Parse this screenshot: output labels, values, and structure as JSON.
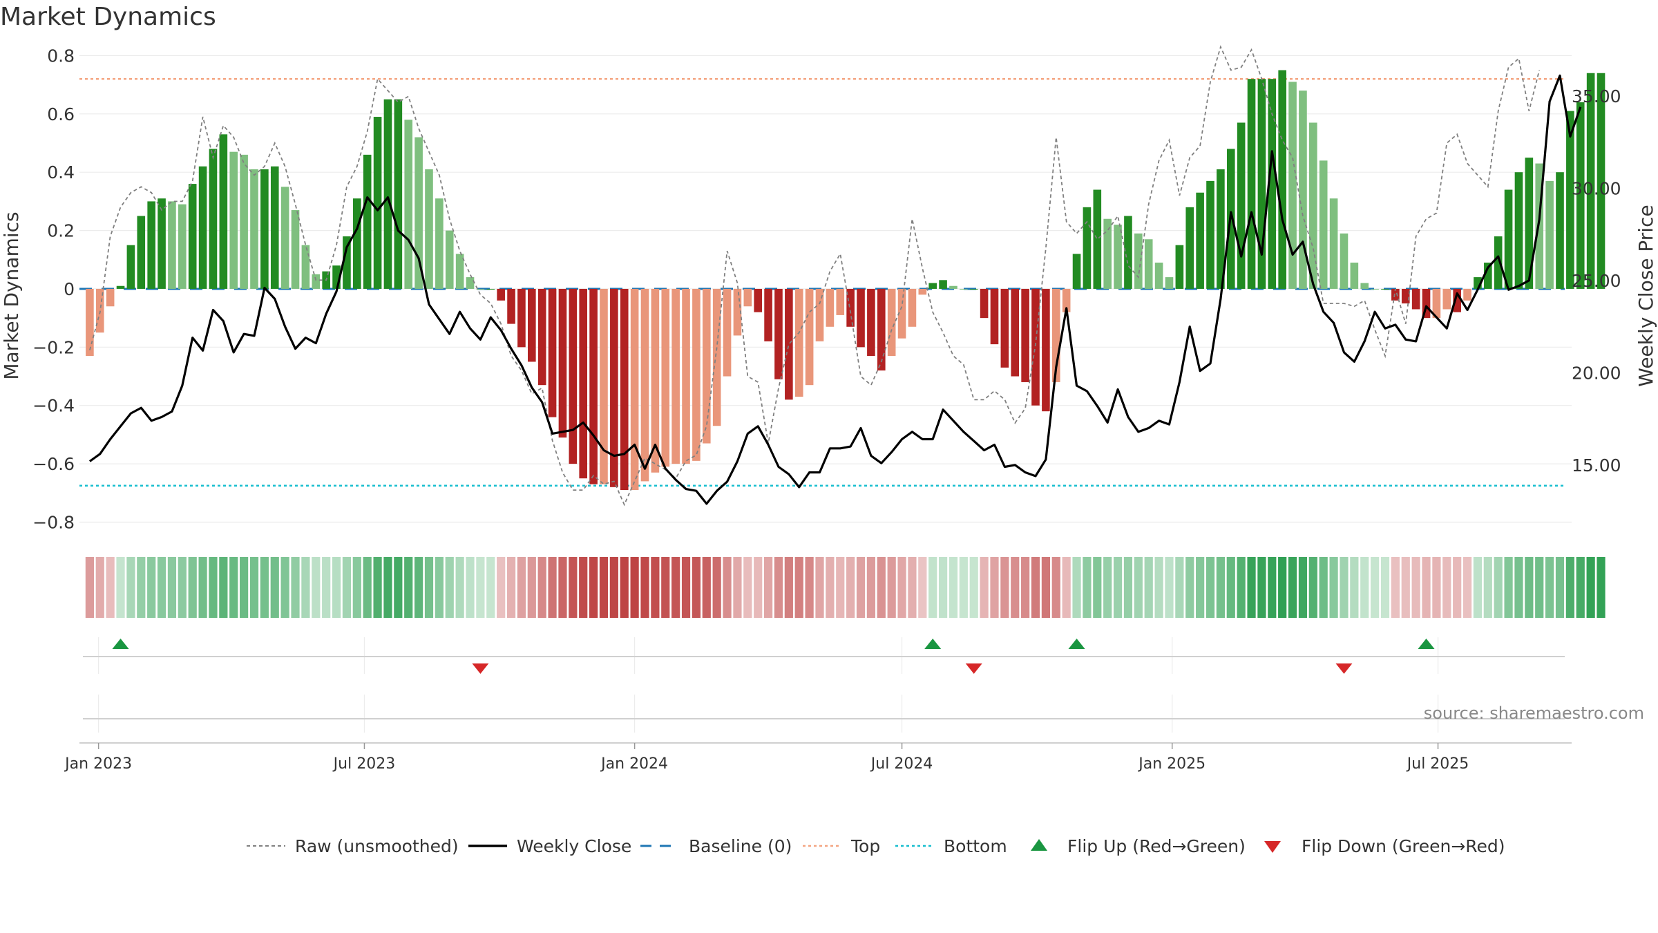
{
  "title": "Market Dynamics",
  "source": "source: sharemaestro.com",
  "left_axis_label": "Market Dynamics",
  "right_axis_label": "Weekly Close Price",
  "left_ticks": [
    "0.8",
    "0.6",
    "0.4",
    "0.2",
    "0",
    "−0.2",
    "−0.4",
    "−0.6",
    "−0.8"
  ],
  "right_ticks": [
    "35.00",
    "30.00",
    "25.00",
    "20.00",
    "15.00"
  ],
  "x_ticks": [
    "Jan 2023",
    "Jul 2023",
    "Jan 2024",
    "Jul 2024",
    "Jan 2025",
    "Jul 2025"
  ],
  "legend": {
    "raw": "Raw (unsmoothed)",
    "close": "Weekly Close",
    "baseline": "Baseline (0)",
    "top": "Top",
    "bottom": "Bottom",
    "flip_up": "Flip Up (Red→Green)",
    "flip_down": "Flip Down (Green→Red)"
  },
  "colors": {
    "strong_green": "#228b22",
    "light_green": "#7fbf7f",
    "strong_red": "#b22222",
    "light_red": "#e9967a",
    "close_line": "#000000",
    "raw_line": "#808080",
    "baseline": "#1f77b4",
    "top": "#f4a582",
    "bottom": "#17becf",
    "flip_up": "#1a9641",
    "flip_down": "#d62728"
  },
  "chart_data": {
    "type": "bar",
    "x_range": [
      "2022-12-19",
      "2025-09-30"
    ],
    "y_left_lim": [
      -0.87,
      0.82
    ],
    "y_right_lim": [
      10.8,
      37.5
    ],
    "top_level": 0.72,
    "bottom_level": -0.675,
    "baseline": 0,
    "dynamics": [
      -0.23,
      -0.15,
      -0.06,
      0.01,
      0.15,
      0.25,
      0.3,
      0.31,
      0.3,
      0.29,
      0.36,
      0.42,
      0.48,
      0.53,
      0.47,
      0.46,
      0.41,
      0.41,
      0.42,
      0.35,
      0.27,
      0.15,
      0.05,
      0.06,
      0.08,
      0.18,
      0.31,
      0.46,
      0.59,
      0.65,
      0.65,
      0.58,
      0.52,
      0.41,
      0.31,
      0.2,
      0.12,
      0.04,
      0,
      0,
      -0.04,
      -0.12,
      -0.2,
      -0.25,
      -0.33,
      -0.44,
      -0.51,
      -0.6,
      -0.65,
      -0.67,
      -0.67,
      -0.68,
      -0.69,
      -0.69,
      -0.66,
      -0.63,
      -0.61,
      -0.6,
      -0.6,
      -0.59,
      -0.53,
      -0.47,
      -0.3,
      -0.16,
      -0.06,
      -0.08,
      -0.18,
      -0.31,
      -0.38,
      -0.37,
      -0.33,
      -0.18,
      -0.13,
      -0.09,
      -0.13,
      -0.2,
      -0.23,
      -0.28,
      -0.23,
      -0.17,
      -0.13,
      -0.02,
      0.02,
      0.03,
      0.01,
      0,
      0,
      -0.1,
      -0.19,
      -0.27,
      -0.3,
      -0.32,
      -0.4,
      -0.42,
      -0.32,
      -0.08,
      0.12,
      0.28,
      0.34,
      0.24,
      0.22,
      0.25,
      0.19,
      0.17,
      0.09,
      0.04,
      0.15,
      0.28,
      0.33,
      0.37,
      0.41,
      0.48,
      0.57,
      0.72,
      0.72,
      0.72,
      0.75,
      0.71,
      0.68,
      0.57,
      0.44,
      0.31,
      0.19,
      0.09,
      0.02,
      0,
      0,
      -0.04,
      -0.05,
      -0.07,
      -0.1,
      -0.1,
      -0.07,
      -0.08,
      -0.04,
      0.04,
      0.09,
      0.18,
      0.34,
      0.4,
      0.45,
      0.43,
      0.37,
      0.4,
      0.61,
      0.64,
      0.74,
      0.74
    ],
    "raw": [
      -0.21,
      -0.08,
      0.18,
      0.28,
      0.33,
      0.35,
      0.33,
      0.27,
      0.3,
      0.3,
      0.37,
      0.59,
      0.45,
      0.56,
      0.52,
      0.43,
      0.39,
      0.42,
      0.5,
      0.42,
      0.29,
      0.15,
      0.03,
      0.03,
      0.15,
      0.35,
      0.42,
      0.54,
      0.72,
      0.68,
      0.64,
      0.66,
      0.55,
      0.47,
      0.39,
      0.24,
      0.13,
      0.05,
      -0.02,
      -0.05,
      -0.12,
      -0.23,
      -0.28,
      -0.36,
      -0.34,
      -0.52,
      -0.63,
      -0.69,
      -0.69,
      -0.64,
      -0.67,
      -0.66,
      -0.74,
      -0.66,
      -0.58,
      -0.6,
      -0.62,
      -0.65,
      -0.59,
      -0.57,
      -0.47,
      -0.2,
      0.13,
      0.02,
      -0.3,
      -0.32,
      -0.53,
      -0.34,
      -0.19,
      -0.15,
      -0.08,
      -0.05,
      0.06,
      0.12,
      -0.08,
      -0.3,
      -0.33,
      -0.25,
      -0.14,
      -0.06,
      0.24,
      0.07,
      -0.08,
      -0.15,
      -0.23,
      -0.26,
      -0.38,
      -0.38,
      -0.35,
      -0.38,
      -0.46,
      -0.41,
      -0.19,
      0.14,
      0.52,
      0.23,
      0.19,
      0.23,
      0.17,
      0.2,
      0.25,
      0.08,
      0.04,
      0.29,
      0.44,
      0.51,
      0.32,
      0.45,
      0.49,
      0.71,
      0.83,
      0.75,
      0.76,
      0.82,
      0.72,
      0.6,
      0.51,
      0.45,
      0.25,
      0.14,
      -0.05,
      -0.05,
      -0.05,
      -0.06,
      -0.04,
      -0.14,
      -0.23,
      0.0,
      -0.12,
      0.18,
      0.24,
      0.26,
      0.5,
      0.53,
      0.43,
      0.39,
      0.35,
      0.61,
      0.76,
      0.79,
      0.61,
      0.75
    ],
    "close": [
      15.2,
      15.6,
      16.4,
      17.1,
      17.8,
      18.1,
      17.4,
      17.6,
      17.9,
      19.3,
      21.9,
      21.2,
      23.4,
      22.8,
      21.1,
      22.1,
      22.0,
      24.6,
      24.0,
      22.5,
      21.3,
      21.9,
      21.6,
      23.2,
      24.4,
      26.8,
      27.8,
      29.5,
      28.8,
      29.5,
      27.7,
      27.2,
      26.2,
      23.7,
      22.9,
      22.1,
      23.3,
      22.4,
      21.8,
      23.0,
      22.3,
      21.3,
      20.4,
      19.2,
      18.4,
      16.7,
      16.8,
      16.9,
      17.3,
      16.6,
      15.8,
      15.5,
      15.6,
      16.1,
      14.8,
      16.1,
      14.8,
      14.2,
      13.7,
      13.6,
      12.9,
      13.6,
      14.1,
      15.2,
      16.7,
      17.1,
      16.1,
      14.9,
      14.5,
      13.8,
      14.6,
      14.6,
      15.9,
      15.9,
      16.0,
      17.0,
      15.5,
      15.1,
      15.7,
      16.4,
      16.8,
      16.4,
      16.4,
      18.0,
      17.4,
      16.8,
      16.3,
      15.8,
      16.1,
      14.9,
      15.0,
      14.6,
      14.4,
      15.3,
      20.3,
      23.5,
      19.3,
      19.0,
      18.2,
      17.3,
      19.1,
      17.6,
      16.8,
      17.0,
      17.4,
      17.2,
      19.5,
      22.5,
      20.1,
      20.5,
      24.0,
      28.7,
      26.3,
      28.7,
      26.4,
      32.0,
      28.3,
      26.4,
      27.1,
      24.8,
      23.3,
      22.7,
      21.1,
      20.6,
      21.7,
      23.3,
      22.4,
      22.6,
      21.8,
      21.7,
      23.6,
      23.0,
      22.4,
      24.3,
      23.4,
      24.5,
      25.7,
      26.3,
      24.5,
      24.7,
      25.0,
      28.3,
      34.7,
      36.1,
      32.8,
      34.4
    ],
    "flips_up": [
      "2023-01-16",
      "2024-07-22",
      "2024-10-28",
      "2025-06-23"
    ],
    "flips_down": [
      "2023-09-18",
      "2024-08-19",
      "2025-04-28"
    ]
  }
}
